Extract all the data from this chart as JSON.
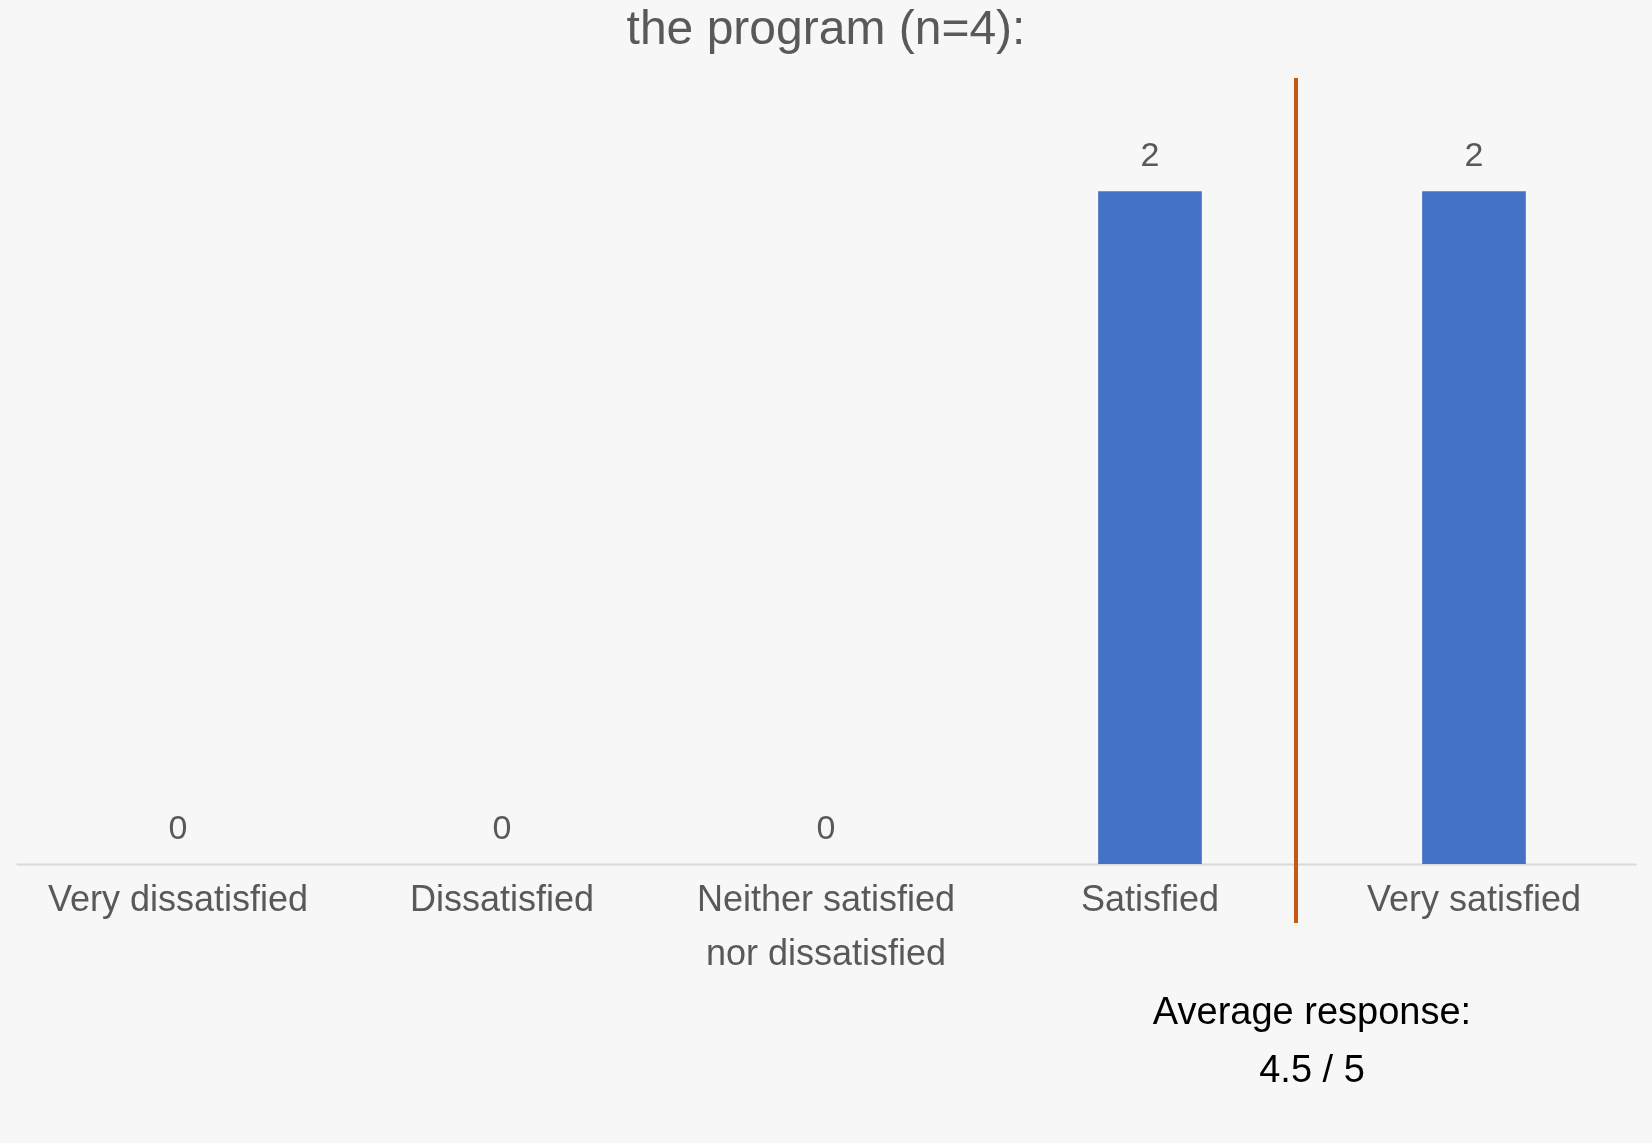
{
  "chart_data": {
    "type": "bar",
    "title": "the program (n=4):",
    "categories": [
      "Very dissatisfied",
      "Dissatisfied",
      "Neither satisfied nor dissatisfied",
      "Satisfied",
      "Very satisfied"
    ],
    "values": [
      0,
      0,
      0,
      2,
      2
    ],
    "color": "#4472c4",
    "data_labels": true,
    "annotations": [
      "Average response:\n4.5 / 5"
    ]
  }
}
